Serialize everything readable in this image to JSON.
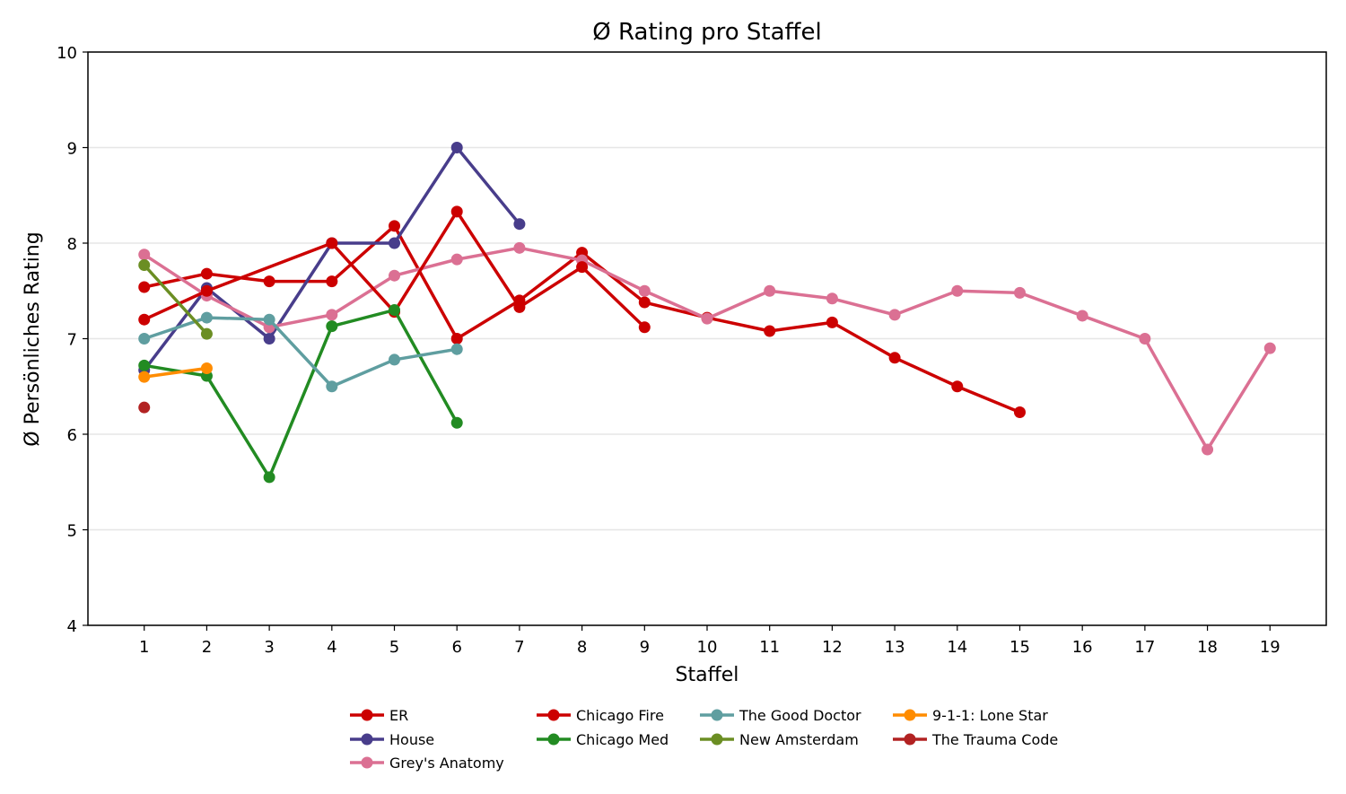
{
  "chart_data": {
    "type": "line",
    "title": "Ø Rating pro Staffel",
    "xlabel": "Staffel",
    "ylabel": "Ø Persönliches Rating",
    "xlim": [
      0.1,
      19.9
    ],
    "ylim": [
      4,
      10
    ],
    "xticks": [
      1,
      2,
      3,
      4,
      5,
      6,
      7,
      8,
      9,
      10,
      11,
      12,
      13,
      14,
      15,
      16,
      17,
      18,
      19
    ],
    "yticks": [
      4,
      5,
      6,
      7,
      8,
      9,
      10
    ],
    "grid": "horizontal",
    "legend_placement": "bottom",
    "series": [
      {
        "name": "ER",
        "color": "#cc0000",
        "x": [
          1,
          2,
          3,
          4,
          5,
          6,
          7,
          8,
          9,
          10,
          11,
          12,
          13,
          14,
          15
        ],
        "y": [
          7.54,
          7.68,
          7.6,
          7.6,
          8.18,
          7.0,
          7.4,
          7.9,
          7.38,
          7.22,
          7.08,
          7.17,
          6.8,
          6.5,
          6.23
        ]
      },
      {
        "name": "House",
        "color": "#483d8b",
        "x": [
          1,
          2,
          3,
          4,
          5,
          6,
          7
        ],
        "y": [
          6.67,
          7.53,
          7.0,
          8.0,
          8.0,
          9.0,
          8.2
        ]
      },
      {
        "name": "Grey's Anatomy",
        "color": "#db7093",
        "x": [
          1,
          2,
          3,
          4,
          5,
          6,
          7,
          8,
          9,
          10,
          11,
          12,
          13,
          14,
          15,
          16,
          17,
          18,
          19
        ],
        "y": [
          7.88,
          7.45,
          7.12,
          7.25,
          7.66,
          7.83,
          7.95,
          7.82,
          7.5,
          7.21,
          7.5,
          7.42,
          7.25,
          7.5,
          7.48,
          7.24,
          7.0,
          5.84,
          6.9
        ]
      },
      {
        "name": "Chicago Fire",
        "color": "#cc0000",
        "x": [
          1,
          2,
          4,
          5,
          6,
          7,
          8,
          9
        ],
        "y": [
          7.2,
          7.5,
          8.0,
          7.28,
          8.33,
          7.33,
          7.75,
          7.12
        ]
      },
      {
        "name": "Chicago Med",
        "color": "#228b22",
        "x": [
          1,
          2,
          3,
          4,
          5,
          6
        ],
        "y": [
          6.72,
          6.61,
          5.55,
          7.13,
          7.3,
          6.12
        ]
      },
      {
        "name": "The Good Doctor",
        "color": "#5f9ea0",
        "x": [
          1,
          2,
          3,
          4,
          5,
          6
        ],
        "y": [
          7.0,
          7.22,
          7.2,
          6.5,
          6.78,
          6.89
        ]
      },
      {
        "name": "New Amsterdam",
        "color": "#6b8e23",
        "x": [
          1,
          2
        ],
        "y": [
          7.77,
          7.05
        ]
      },
      {
        "name": "9-1-1: Lone Star",
        "color": "#ff8c00",
        "x": [
          1,
          2
        ],
        "y": [
          6.6,
          6.69
        ]
      },
      {
        "name": "The Trauma Code",
        "color": "#b22222",
        "x": [
          1
        ],
        "y": [
          6.28
        ]
      }
    ]
  }
}
